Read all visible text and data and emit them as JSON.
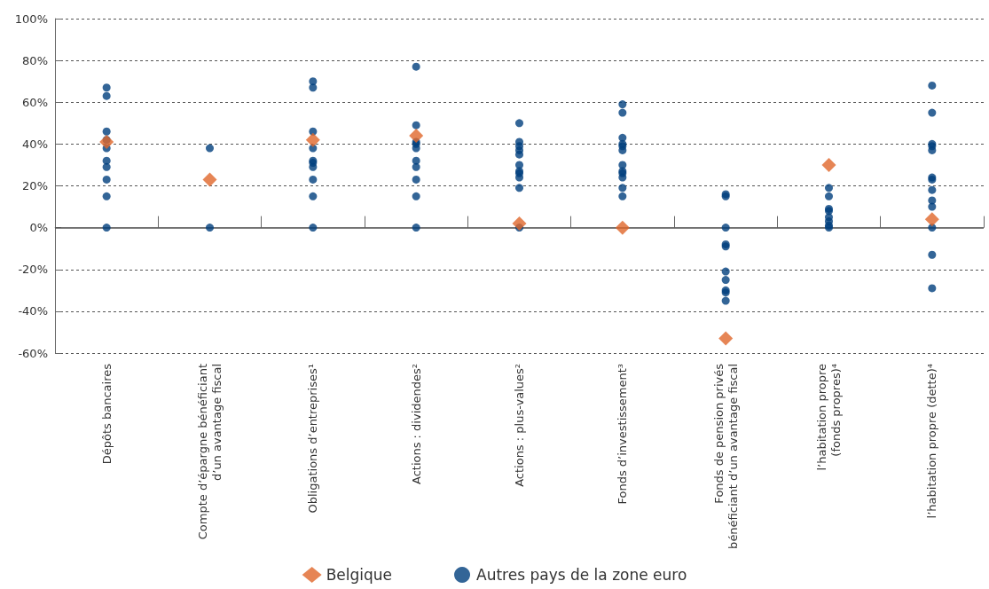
{
  "chart_data": {
    "type": "scatter",
    "categories": [
      "Dépôts bancaires",
      "Compte d’épargne bénéficiant\nd’un avantage fiscal",
      "Obligations d’entreprises¹",
      "Actions : dividendes²",
      "Actions : plus-values²",
      "Fonds d’investissement³",
      "Fonds de pension privés\nbénéficiant d’un avantage fiscal",
      "l’habitation propre\n(fonds propres)⁴",
      "l’habitation propre (dette)⁴"
    ],
    "series": [
      {
        "name": "Belgique",
        "color": "#e0662a",
        "marker": "diamond",
        "x": [
          "Dépôts bancaires",
          "Compte d’épargne bénéficiant\nd’un avantage fiscal",
          "Obligations d’entreprises¹",
          "Actions : dividendes²",
          "Actions : plus-values²",
          "Fonds d’investissement³",
          "Fonds de pension privés\nbénéficiant d’un avantage fiscal",
          "l’habitation propre\n(fonds propres)⁴",
          "l’habitation propre (dette)⁴"
        ],
        "values": [
          41,
          23,
          42,
          44,
          2,
          0,
          -53,
          30,
          4
        ]
      },
      {
        "name": "Autres pays de la zone euro",
        "color": "#003f7d",
        "marker": "circle",
        "x": [
          "Dépôts bancaires",
          "Dépôts bancaires",
          "Dépôts bancaires",
          "Dépôts bancaires",
          "Dépôts bancaires",
          "Dépôts bancaires",
          "Dépôts bancaires",
          "Dépôts bancaires",
          "Dépôts bancaires",
          "Dépôts bancaires",
          "Compte d’épargne bénéficiant\nd’un avantage fiscal",
          "Compte d’épargne bénéficiant\nd’un avantage fiscal",
          "Obligations d’entreprises¹",
          "Obligations d’entreprises¹",
          "Obligations d’entreprises¹",
          "Obligations d’entreprises¹",
          "Obligations d’entreprises¹",
          "Obligations d’entreprises¹",
          "Obligations d’entreprises¹",
          "Obligations d’entreprises¹",
          "Obligations d’entreprises¹",
          "Obligations d’entreprises¹",
          "Actions : dividendes²",
          "Actions : dividendes²",
          "Actions : dividendes²",
          "Actions : dividendes²",
          "Actions : dividendes²",
          "Actions : dividendes²",
          "Actions : dividendes²",
          "Actions : dividendes²",
          "Actions : dividendes²",
          "Actions : dividendes²",
          "Actions : plus-values²",
          "Actions : plus-values²",
          "Actions : plus-values²",
          "Actions : plus-values²",
          "Actions : plus-values²",
          "Actions : plus-values²",
          "Actions : plus-values²",
          "Actions : plus-values²",
          "Actions : plus-values²",
          "Actions : plus-values²",
          "Actions : plus-values²",
          "Fonds d’investissement³",
          "Fonds d’investissement³",
          "Fonds d’investissement³",
          "Fonds d’investissement³",
          "Fonds d’investissement³",
          "Fonds d’investissement³",
          "Fonds d’investissement³",
          "Fonds d’investissement³",
          "Fonds d’investissement³",
          "Fonds d’investissement³",
          "Fonds d’investissement³",
          "Fonds d’investissement³",
          "Fonds de pension privés\nbénéficiant d’un avantage fiscal",
          "Fonds de pension privés\nbénéficiant d’un avantage fiscal",
          "Fonds de pension privés\nbénéficiant d’un avantage fiscal",
          "Fonds de pension privés\nbénéficiant d’un avantage fiscal",
          "Fonds de pension privés\nbénéficiant d’un avantage fiscal",
          "Fonds de pension privés\nbénéficiant d’un avantage fiscal",
          "Fonds de pension privés\nbénéficiant d’un avantage fiscal",
          "Fonds de pension privés\nbénéficiant d’un avantage fiscal",
          "Fonds de pension privés\nbénéficiant d’un avantage fiscal",
          "Fonds de pension privés\nbénéficiant d’un avantage fiscal",
          "l’habitation propre\n(fonds propres)⁴",
          "l’habitation propre\n(fonds propres)⁴",
          "l’habitation propre\n(fonds propres)⁴",
          "l’habitation propre\n(fonds propres)⁴",
          "l’habitation propre\n(fonds propres)⁴",
          "l’habitation propre\n(fonds propres)⁴",
          "l’habitation propre\n(fonds propres)⁴",
          "l’habitation propre\n(fonds propres)⁴",
          "l’habitation propre (dette)⁴",
          "l’habitation propre (dette)⁴",
          "l’habitation propre (dette)⁴",
          "l’habitation propre (dette)⁴",
          "l’habitation propre (dette)⁴",
          "l’habitation propre (dette)⁴",
          "l’habitation propre (dette)⁴",
          "l’habitation propre (dette)⁴",
          "l’habitation propre (dette)⁴",
          "l’habitation propre (dette)⁴",
          "l’habitation propre (dette)⁴",
          "l’habitation propre (dette)⁴",
          "l’habitation propre (dette)⁴"
        ],
        "values": [
          67,
          63,
          46,
          42,
          38,
          32,
          29,
          23,
          15,
          0,
          38,
          0,
          70,
          67,
          46,
          38,
          32,
          31,
          29,
          23,
          15,
          0,
          77,
          49,
          41,
          40,
          38,
          32,
          29,
          23,
          15,
          0,
          50,
          41,
          39,
          37,
          35,
          30,
          27,
          26,
          24,
          19,
          0,
          59,
          55,
          43,
          40,
          39,
          37,
          30,
          27,
          26,
          24,
          19,
          15,
          16,
          15,
          0,
          -8,
          -9,
          -21,
          -25,
          -30,
          -31,
          -35,
          19,
          15,
          9,
          8,
          5,
          3,
          1,
          0,
          68,
          55,
          40,
          39,
          37,
          24,
          23,
          18,
          13,
          10,
          0,
          -13,
          -29
        ]
      }
    ],
    "ylim": [
      -60,
      100
    ],
    "yticks": [
      {
        "value": -60,
        "label": "-60%"
      },
      {
        "value": -40,
        "label": "-40%"
      },
      {
        "value": -20,
        "label": "-20%"
      },
      {
        "value": 0,
        "label": "0%"
      },
      {
        "value": 20,
        "label": "20%"
      },
      {
        "value": 40,
        "label": "40%"
      },
      {
        "value": 60,
        "label": "60%"
      },
      {
        "value": 80,
        "label": "80%"
      },
      {
        "value": 100,
        "label": "100%"
      }
    ],
    "ref_lines": [
      {
        "axis": "y",
        "value": 0,
        "color": "#555555",
        "line_style": "solid"
      }
    ],
    "grid": "y",
    "legend": "bottom"
  }
}
